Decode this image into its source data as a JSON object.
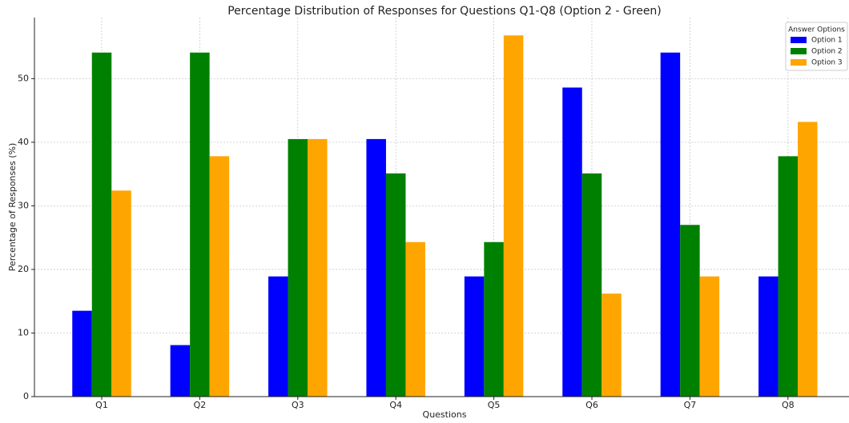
{
  "chart_data": {
    "type": "bar",
    "title": "Percentage Distribution of Responses for Questions Q1-Q8 (Option 2 - Green)",
    "x_label": "Questions",
    "y_label": "Percentage of Responses (%)",
    "categories": [
      "Q1",
      "Q2",
      "Q3",
      "Q4",
      "Q5",
      "Q6",
      "Q7",
      "Q8"
    ],
    "series": [
      {
        "name": "Option 1",
        "color": "#0000ff",
        "values": [
          13.5,
          8.1,
          18.9,
          40.5,
          18.9,
          48.6,
          54.1,
          18.9
        ]
      },
      {
        "name": "Option 2",
        "color": "#008000",
        "values": [
          54.1,
          54.1,
          40.5,
          35.1,
          24.3,
          35.1,
          27.0,
          37.8
        ]
      },
      {
        "name": "Option 3",
        "color": "#ffa500",
        "values": [
          32.4,
          37.8,
          40.5,
          24.3,
          56.8,
          16.2,
          18.9,
          43.2
        ]
      }
    ],
    "ylim": [
      0,
      59.6
    ],
    "yticks": [
      0,
      10,
      20,
      30,
      40,
      50
    ],
    "grid": true,
    "legend_title": "Answer Options",
    "legend_position": "upper right"
  }
}
